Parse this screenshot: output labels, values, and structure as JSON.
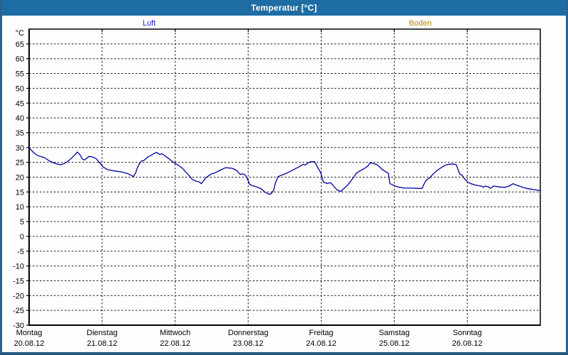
{
  "window": {
    "title": "Temperatur [°C]"
  },
  "colors": {
    "titlebar": "#1d6da4",
    "frame": "#2a6391",
    "luft_label": "#2222cc",
    "boden_label": "#b8860b",
    "luft_line": "#0000a0",
    "grid": "#1a1a1a",
    "plot_border": "#000000",
    "background": "#fdfefd"
  },
  "legend": {
    "series": [
      {
        "label": "Luft",
        "color_key": "luft_label"
      },
      {
        "label": "Boden",
        "color_key": "boden_label"
      }
    ]
  },
  "chart_data": {
    "type": "line",
    "title": "Temperatur [°C]",
    "ylabel": "°C",
    "grid": "dashed",
    "y_axis": {
      "min": -30,
      "max": 70,
      "tick_step": 5,
      "label_min": -30,
      "label_max": 65,
      "unit": "°C"
    },
    "x_axis": {
      "units": "days",
      "span_days": 7,
      "days": [
        {
          "weekday": "Montag",
          "date": "20.08.12"
        },
        {
          "weekday": "Dienstag",
          "date": "21.08.12"
        },
        {
          "weekday": "Mittwoch",
          "date": "22.08.12"
        },
        {
          "weekday": "Donnerstag",
          "date": "23.08.12"
        },
        {
          "weekday": "Freitag",
          "date": "24.08.12"
        },
        {
          "weekday": "Samstag",
          "date": "25.08.12"
        },
        {
          "weekday": "Sonntag",
          "date": "26.08.12"
        }
      ]
    },
    "series": [
      {
        "name": "Luft",
        "color": "#0000a0",
        "points": [
          [
            0.0,
            29.9
          ],
          [
            0.05,
            28.6
          ],
          [
            0.1,
            27.5
          ],
          [
            0.15,
            27.0
          ],
          [
            0.21,
            26.6
          ],
          [
            0.29,
            25.3
          ],
          [
            0.34,
            24.8
          ],
          [
            0.39,
            24.4
          ],
          [
            0.44,
            24.2
          ],
          [
            0.48,
            24.6
          ],
          [
            0.53,
            25.3
          ],
          [
            0.58,
            26.4
          ],
          [
            0.63,
            27.6
          ],
          [
            0.66,
            28.5
          ],
          [
            0.7,
            27.4
          ],
          [
            0.73,
            26.1
          ],
          [
            0.76,
            25.8
          ],
          [
            0.8,
            26.6
          ],
          [
            0.82,
            27.0
          ],
          [
            0.87,
            26.8
          ],
          [
            0.92,
            26.2
          ],
          [
            0.95,
            25.3
          ],
          [
            0.97,
            24.8
          ],
          [
            1.0,
            23.8
          ],
          [
            1.03,
            23.2
          ],
          [
            1.07,
            22.6
          ],
          [
            1.16,
            22.1
          ],
          [
            1.26,
            21.8
          ],
          [
            1.36,
            21.1
          ],
          [
            1.43,
            20.2
          ],
          [
            1.46,
            21.5
          ],
          [
            1.48,
            23.0
          ],
          [
            1.51,
            24.5
          ],
          [
            1.54,
            25.5
          ],
          [
            1.57,
            25.6
          ],
          [
            1.62,
            26.7
          ],
          [
            1.68,
            27.5
          ],
          [
            1.74,
            28.4
          ],
          [
            1.79,
            27.7
          ],
          [
            1.82,
            27.9
          ],
          [
            1.91,
            26.3
          ],
          [
            1.97,
            25.1
          ],
          [
            2.04,
            24.1
          ],
          [
            2.1,
            23.0
          ],
          [
            2.15,
            21.6
          ],
          [
            2.2,
            20.3
          ],
          [
            2.23,
            19.3
          ],
          [
            2.28,
            18.7
          ],
          [
            2.33,
            18.4
          ],
          [
            2.36,
            17.8
          ],
          [
            2.42,
            19.8
          ],
          [
            2.49,
            21.0
          ],
          [
            2.55,
            21.5
          ],
          [
            2.62,
            22.4
          ],
          [
            2.69,
            23.2
          ],
          [
            2.78,
            23.0
          ],
          [
            2.84,
            22.3
          ],
          [
            2.89,
            20.9
          ],
          [
            2.93,
            21.1
          ],
          [
            2.96,
            20.7
          ],
          [
            2.99,
            19.4
          ],
          [
            3.02,
            17.6
          ],
          [
            3.05,
            17.2
          ],
          [
            3.1,
            16.8
          ],
          [
            3.15,
            16.4
          ],
          [
            3.2,
            15.7
          ],
          [
            3.23,
            14.9
          ],
          [
            3.28,
            14.3
          ],
          [
            3.31,
            14.3
          ],
          [
            3.35,
            15.6
          ],
          [
            3.37,
            17.9
          ],
          [
            3.39,
            19.0
          ],
          [
            3.41,
            20.2
          ],
          [
            3.46,
            20.7
          ],
          [
            3.52,
            21.3
          ],
          [
            3.59,
            22.1
          ],
          [
            3.65,
            22.9
          ],
          [
            3.71,
            23.7
          ],
          [
            3.75,
            24.3
          ],
          [
            3.78,
            24.1
          ],
          [
            3.81,
            24.6
          ],
          [
            3.85,
            25.2
          ],
          [
            3.91,
            25.2
          ],
          [
            3.95,
            23.3
          ],
          [
            3.98,
            22.1
          ],
          [
            4.0,
            20.9
          ],
          [
            4.03,
            18.3
          ],
          [
            4.08,
            17.9
          ],
          [
            4.13,
            18.1
          ],
          [
            4.22,
            15.6
          ],
          [
            4.27,
            15.2
          ],
          [
            4.36,
            17.3
          ],
          [
            4.43,
            19.5
          ],
          [
            4.48,
            21.3
          ],
          [
            4.53,
            22.1
          ],
          [
            4.59,
            22.9
          ],
          [
            4.64,
            23.8
          ],
          [
            4.67,
            24.9
          ],
          [
            4.71,
            24.6
          ],
          [
            4.76,
            24.3
          ],
          [
            4.79,
            23.7
          ],
          [
            4.84,
            22.5
          ],
          [
            4.89,
            21.7
          ],
          [
            4.92,
            21.3
          ],
          [
            4.94,
            17.8
          ],
          [
            4.98,
            17.4
          ],
          [
            5.0,
            17.1
          ],
          [
            5.07,
            16.6
          ],
          [
            5.14,
            16.3
          ],
          [
            5.24,
            16.3
          ],
          [
            5.33,
            16.2
          ],
          [
            5.38,
            16.2
          ],
          [
            5.41,
            17.8
          ],
          [
            5.44,
            19.0
          ],
          [
            5.49,
            19.9
          ],
          [
            5.53,
            21.0
          ],
          [
            5.58,
            22.1
          ],
          [
            5.63,
            23.0
          ],
          [
            5.68,
            23.8
          ],
          [
            5.72,
            24.2
          ],
          [
            5.76,
            24.4
          ],
          [
            5.82,
            24.4
          ],
          [
            5.85,
            24.2
          ],
          [
            5.88,
            22.1
          ],
          [
            5.9,
            21.0
          ],
          [
            5.93,
            20.7
          ],
          [
            5.96,
            19.5
          ],
          [
            5.99,
            18.8
          ],
          [
            6.0,
            18.4
          ],
          [
            6.05,
            17.8
          ],
          [
            6.1,
            17.4
          ],
          [
            6.15,
            17.1
          ],
          [
            6.19,
            17.0
          ],
          [
            6.22,
            16.6
          ],
          [
            6.25,
            17.0
          ],
          [
            6.29,
            16.7
          ],
          [
            6.32,
            16.2
          ],
          [
            6.36,
            17.0
          ],
          [
            6.41,
            16.8
          ],
          [
            6.47,
            16.6
          ],
          [
            6.52,
            16.6
          ],
          [
            6.57,
            17.0
          ],
          [
            6.6,
            17.4
          ],
          [
            6.63,
            17.8
          ],
          [
            6.66,
            17.4
          ],
          [
            6.71,
            17.0
          ],
          [
            6.76,
            16.6
          ],
          [
            6.81,
            16.2
          ],
          [
            6.86,
            16.0
          ],
          [
            6.91,
            15.8
          ],
          [
            6.96,
            15.6
          ],
          [
            7.0,
            15.4
          ]
        ]
      },
      {
        "name": "Boden",
        "color": "#b8860b",
        "points": []
      }
    ]
  }
}
